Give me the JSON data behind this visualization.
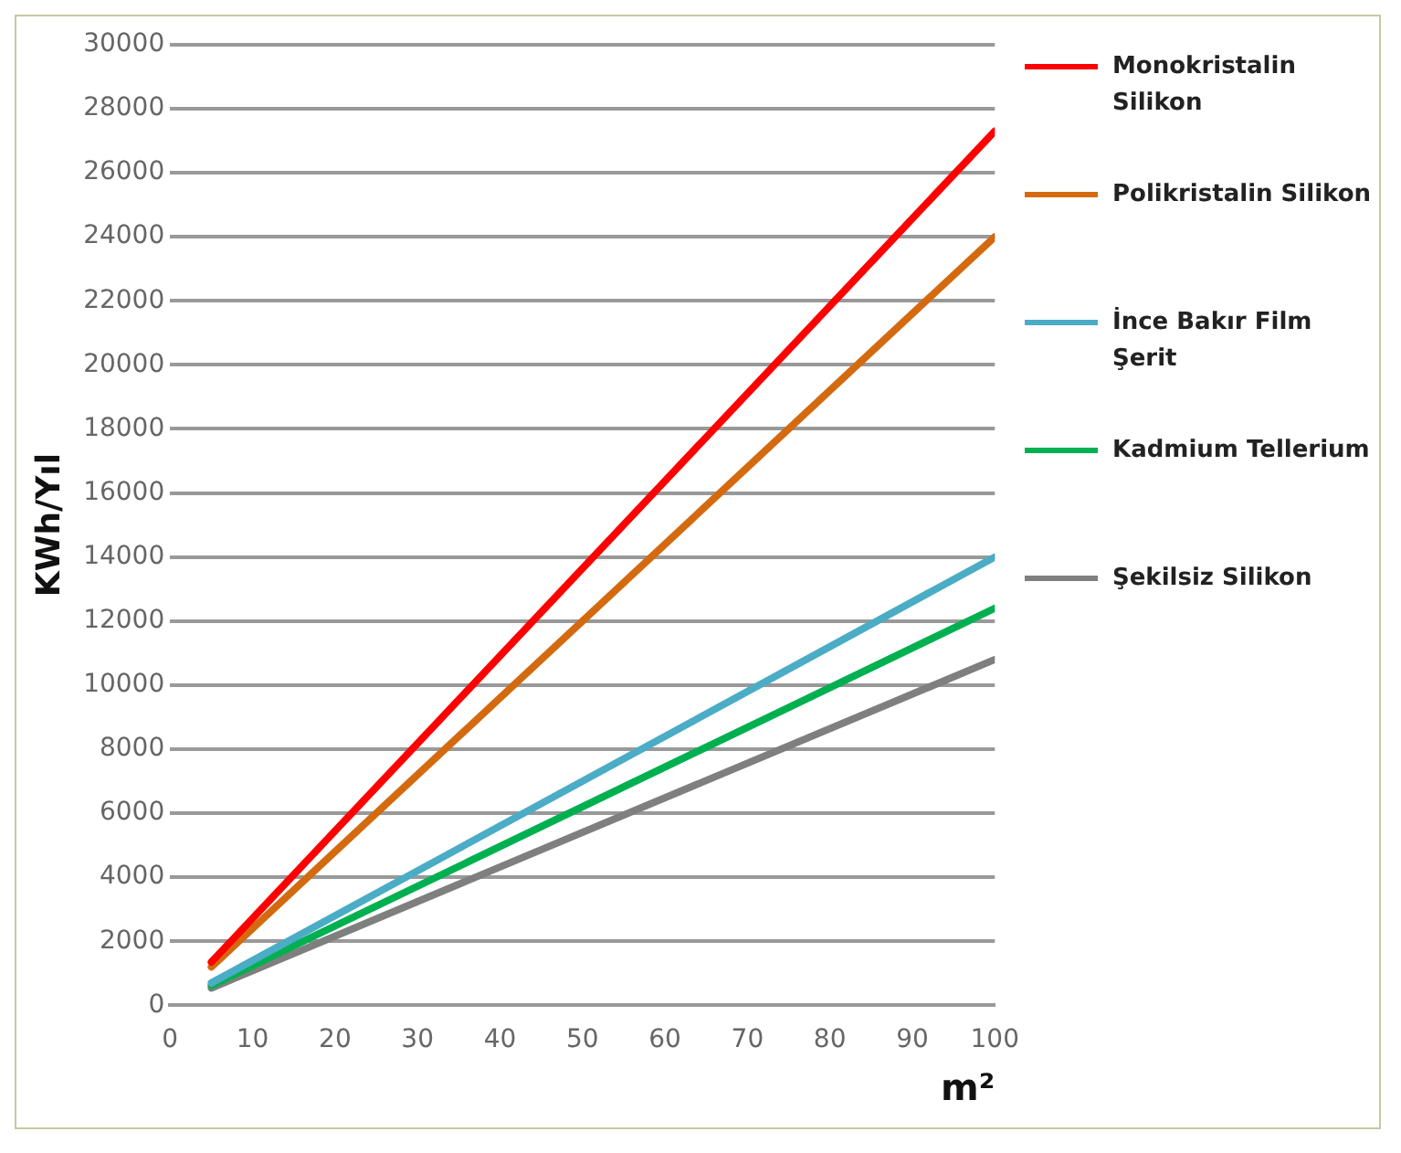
{
  "chart_data": {
    "type": "line",
    "xlabel": "m²",
    "ylabel": "KWh/Yıl",
    "x": [
      5,
      100
    ],
    "series": [
      {
        "name": "Monokristalin Silikon",
        "color": "#ff0000",
        "values": [
          1350,
          27300
        ]
      },
      {
        "name": "Polikristalin Silikon",
        "color": "#d46a10",
        "values": [
          1200,
          24000
        ]
      },
      {
        "name": "İnce Bakır Film Şerit",
        "color": "#4bacc6",
        "values": [
          700,
          14000
        ]
      },
      {
        "name": "Kadmium Tellerium",
        "color": "#00b050",
        "values": [
          620,
          12400
        ]
      },
      {
        "name": "Şekilsiz Silikon",
        "color": "#7f7f7f",
        "values": [
          540,
          10800
        ]
      }
    ],
    "xlim": [
      0,
      100
    ],
    "xticks": [
      0,
      10,
      20,
      30,
      40,
      50,
      60,
      70,
      80,
      90,
      100
    ],
    "ylim": [
      0,
      30000
    ],
    "yticks": [
      0,
      2000,
      4000,
      6000,
      8000,
      10000,
      12000,
      14000,
      16000,
      18000,
      20000,
      22000,
      24000,
      26000,
      28000,
      30000
    ],
    "grid": "y",
    "legend": "right",
    "marker": "none",
    "line_style": "solid"
  }
}
